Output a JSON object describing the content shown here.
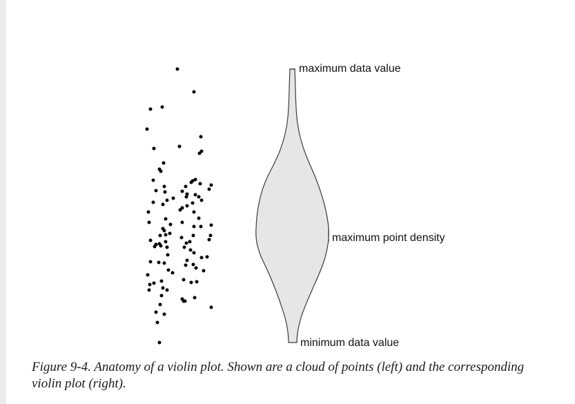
{
  "labels": {
    "max_value": "maximum data value",
    "max_density": "maximum point density",
    "min_value": "minimum data value"
  },
  "caption": {
    "prefix": "Figure 9-4. ",
    "text": "Anatomy of a violin plot. Shown are a cloud of points (left) and the corresponding violin plot (right)."
  },
  "colors": {
    "point": "#000000",
    "violin_fill": "#e6e6e6",
    "violin_stroke": "#3a3a3a",
    "text": "#111111"
  }
}
